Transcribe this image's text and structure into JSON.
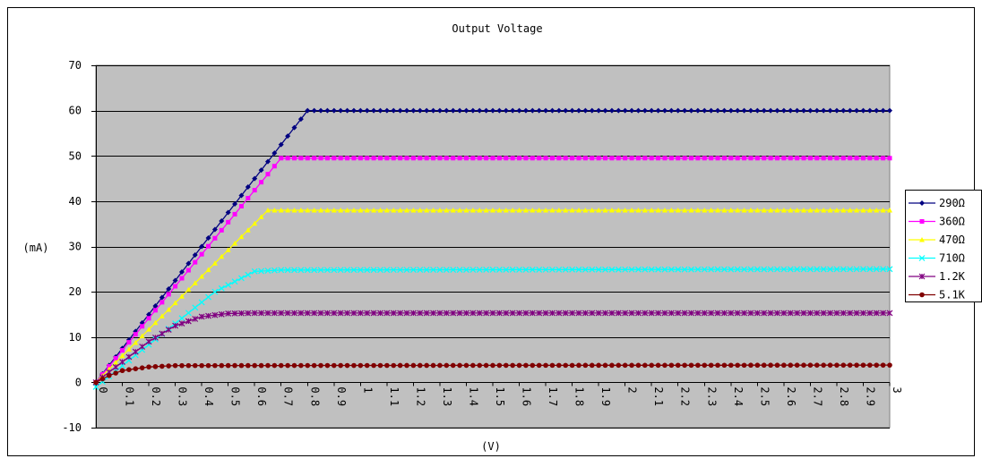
{
  "chart_data": {
    "type": "line",
    "title": "Output Voltage",
    "xlabel": "(V)",
    "ylabel": "(mA)",
    "xlim": [
      0,
      3
    ],
    "ylim": [
      -10,
      70
    ],
    "y_ticks": [
      "-10",
      "0",
      "10",
      "20",
      "30",
      "40",
      "50",
      "60",
      "70"
    ],
    "x_ticks": [
      "0",
      "0.1",
      "0.2",
      "0.3",
      "0.4",
      "0.5",
      "0.6",
      "0.7",
      "0.8",
      "0.9",
      "1",
      "1.1",
      "1.2",
      "1.3",
      "1.4",
      "1.5",
      "1.6",
      "1.7",
      "1.8",
      "1.9",
      "2",
      "2.1",
      "2.2",
      "2.3",
      "2.4",
      "2.5",
      "2.6",
      "2.7",
      "2.8",
      "2.9",
      "3"
    ],
    "grid": "horizontal",
    "legend_position": "right",
    "x_step": 0.025,
    "series": [
      {
        "name": "290Ω",
        "color": "#000080",
        "marker": "diamond",
        "points": [
          [
            0,
            0
          ],
          [
            0.8,
            60
          ],
          [
            3.0,
            60
          ]
        ]
      },
      {
        "name": "360Ω",
        "color": "#ff00ff",
        "marker": "square",
        "points": [
          [
            0,
            0
          ],
          [
            0.7,
            49.5
          ],
          [
            3.0,
            49.5
          ]
        ]
      },
      {
        "name": "470Ω",
        "color": "#ffff00",
        "marker": "triangle",
        "points": [
          [
            0,
            0
          ],
          [
            0.65,
            38
          ],
          [
            3.0,
            38
          ]
        ]
      },
      {
        "name": "710Ω",
        "color": "#00ffff",
        "marker": "x",
        "points": [
          [
            0,
            -1
          ],
          [
            0.15,
            6
          ],
          [
            0.3,
            13
          ],
          [
            0.45,
            20
          ],
          [
            0.6,
            24.5
          ],
          [
            0.7,
            24.8
          ],
          [
            3.0,
            25
          ]
        ]
      },
      {
        "name": "1.2K",
        "color": "#800080",
        "marker": "star",
        "points": [
          [
            0,
            0
          ],
          [
            0.1,
            4.5
          ],
          [
            0.2,
            9
          ],
          [
            0.3,
            12.5
          ],
          [
            0.4,
            14.5
          ],
          [
            0.5,
            15.2
          ],
          [
            0.6,
            15.3
          ],
          [
            3.0,
            15.3
          ]
        ]
      },
      {
        "name": "5.1K",
        "color": "#800000",
        "marker": "circle",
        "points": [
          [
            0,
            0
          ],
          [
            0.05,
            1.5
          ],
          [
            0.1,
            2.6
          ],
          [
            0.2,
            3.4
          ],
          [
            0.3,
            3.7
          ],
          [
            3.0,
            3.8
          ]
        ]
      }
    ]
  }
}
